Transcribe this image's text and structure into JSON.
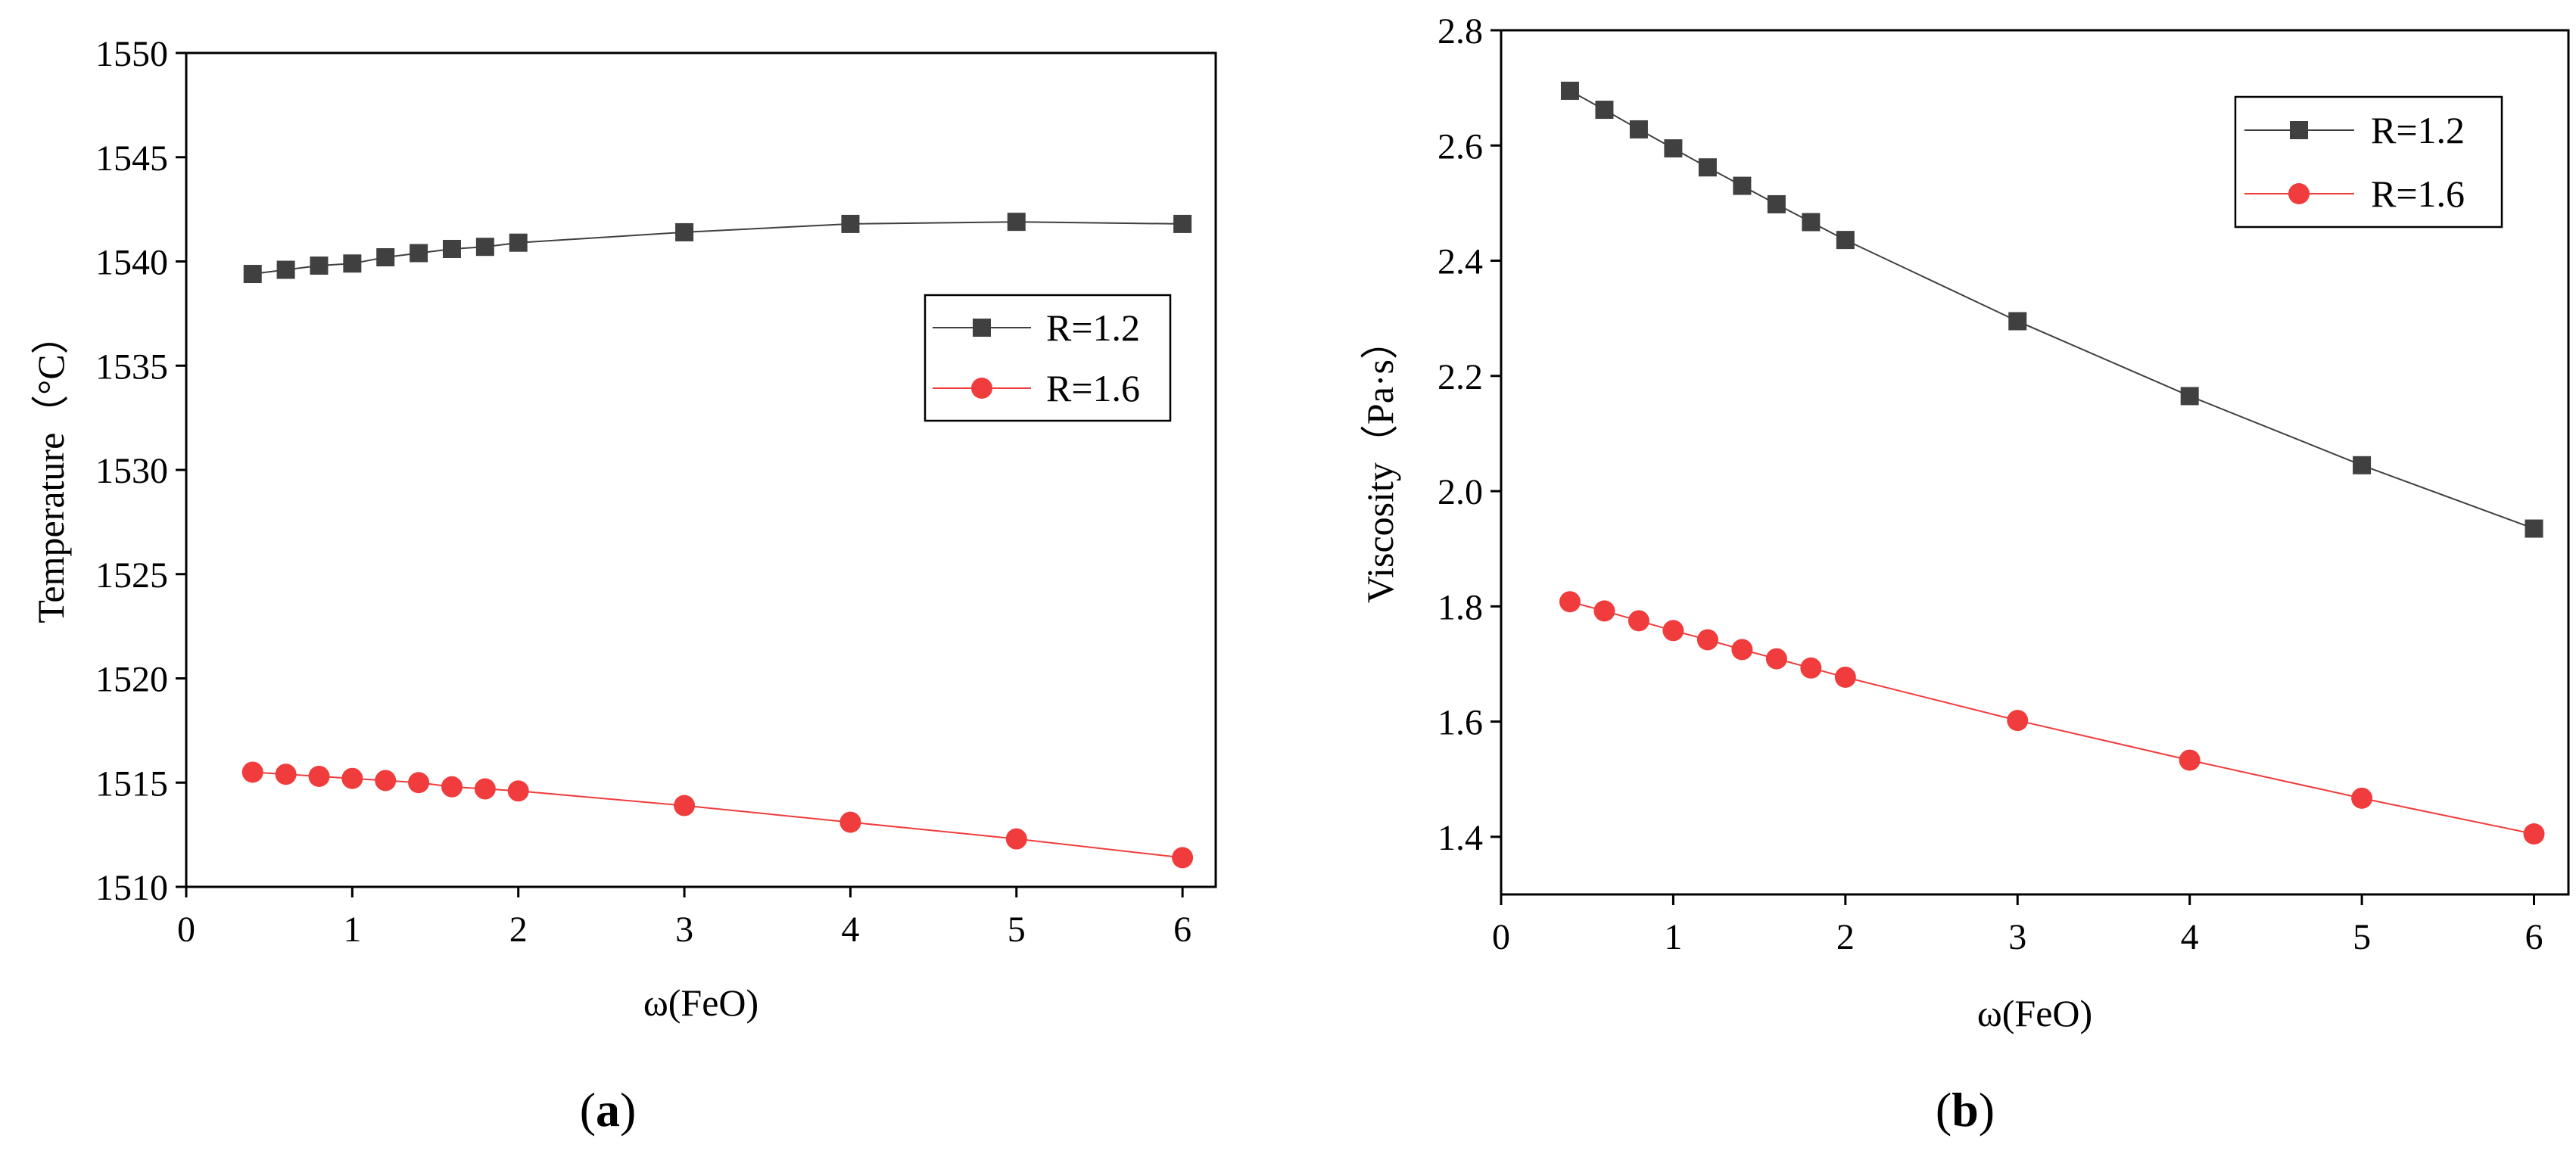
{
  "chart_data": [
    {
      "type": "line",
      "panel_label_open": "(",
      "panel_label_letter": "a",
      "panel_label_close": ")",
      "xlabel": "ω(FeO)",
      "ylabel": "Temperature（°C）",
      "xlim": [
        0,
        6.2
      ],
      "ylim": [
        1510,
        1550
      ],
      "xticks": [
        0,
        1,
        2,
        3,
        4,
        5,
        6
      ],
      "yticks": [
        1510,
        1515,
        1520,
        1525,
        1530,
        1535,
        1540,
        1545,
        1550
      ],
      "x": [
        0.4,
        0.6,
        0.8,
        1.0,
        1.2,
        1.4,
        1.6,
        1.8,
        2.0,
        3.0,
        4.0,
        5.0,
        6.0
      ],
      "legend_position": "right",
      "series": [
        {
          "name": "R=1.2",
          "marker": "square",
          "color": "#404040",
          "values": [
            1539.4,
            1539.6,
            1539.8,
            1539.9,
            1540.2,
            1540.4,
            1540.6,
            1540.7,
            1540.9,
            1541.4,
            1541.8,
            1541.9,
            1541.8
          ]
        },
        {
          "name": "R=1.6",
          "marker": "circle",
          "color": "#f03c3c",
          "values": [
            1515.5,
            1515.4,
            1515.3,
            1515.2,
            1515.1,
            1515.0,
            1514.8,
            1514.7,
            1514.6,
            1513.9,
            1513.1,
            1512.3,
            1511.4
          ]
        }
      ]
    },
    {
      "type": "line",
      "panel_label_open": "(",
      "panel_label_letter": "b",
      "panel_label_close": ")",
      "xlabel": "ω(FeO)",
      "ylabel": "Viscosity（Pa·s）",
      "xlim": [
        0,
        6.2
      ],
      "ylim": [
        1.3,
        2.8
      ],
      "xticks": [
        0,
        1,
        2,
        3,
        4,
        5,
        6
      ],
      "yticks": [
        1.4,
        1.6,
        1.8,
        2.0,
        2.2,
        2.4,
        2.6,
        2.8
      ],
      "ytick_labels": [
        "1.4",
        "1.6",
        "1.8",
        "2.0",
        "2.2",
        "2.4",
        "2.6",
        "2.8"
      ],
      "x": [
        0.4,
        0.6,
        0.8,
        1.0,
        1.2,
        1.4,
        1.6,
        1.8,
        2.0,
        3.0,
        4.0,
        5.0,
        6.0
      ],
      "legend_position": "top-right",
      "series": [
        {
          "name": "R=1.2",
          "marker": "square",
          "color": "#404040",
          "values": [
            2.695,
            2.662,
            2.628,
            2.595,
            2.562,
            2.53,
            2.498,
            2.467,
            2.436,
            2.295,
            2.165,
            2.045,
            1.935
          ]
        },
        {
          "name": "R=1.6",
          "marker": "circle",
          "color": "#f03c3c",
          "values": [
            1.808,
            1.792,
            1.775,
            1.758,
            1.742,
            1.725,
            1.709,
            1.693,
            1.677,
            1.602,
            1.533,
            1.467,
            1.405
          ]
        }
      ]
    }
  ]
}
